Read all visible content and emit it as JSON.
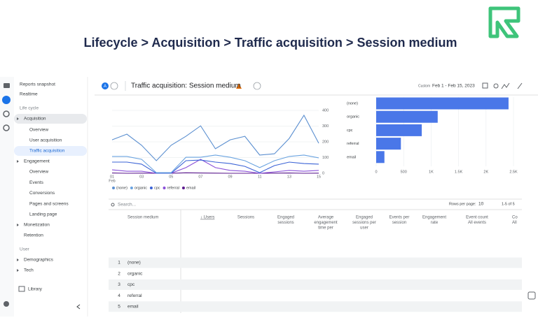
{
  "header": {
    "title": "Lifecycle > Acquisition > Traffic acquisition > Session medium"
  },
  "sidebar": {
    "top": [
      "Reports snapshot",
      "Realtime"
    ],
    "lifecycle_label": "Life cycle",
    "acquisition": {
      "label": "Acquisition",
      "items": [
        "Overview",
        "User acquisition",
        "Traffic acquisition"
      ]
    },
    "engagement": {
      "label": "Engagement",
      "items": [
        "Overview",
        "Events",
        "Conversions",
        "Pages and screens",
        "Landing page"
      ]
    },
    "more": [
      "Monetization",
      "Retention"
    ],
    "user_label": "User",
    "user_items": [
      "Demographics",
      "Tech"
    ],
    "library": "Library"
  },
  "topbar": {
    "avatar": "A",
    "report_title": "Traffic acquisition: Session medium",
    "range_label": "Custom",
    "range": "Feb 1 - Feb 15, 2023"
  },
  "chart_data": [
    {
      "type": "line",
      "categories": [
        "01",
        null,
        "03",
        null,
        "05",
        null,
        "07",
        null,
        "09",
        null,
        "11",
        null,
        "13",
        null,
        "15"
      ],
      "x_sublabel": "Feb",
      "ylim": [
        0,
        400
      ],
      "yticks": [
        0,
        100,
        200,
        300,
        400
      ],
      "y_axis_side": "right",
      "grid": true,
      "series": [
        {
          "name": "(none)",
          "color": "#5b8fd0",
          "values": [
            213,
            249,
            178,
            80,
            178,
            235,
            302,
            156,
            213,
            235,
            116,
            124,
            222,
            369,
            191
          ]
        },
        {
          "name": "organic",
          "color": "#6aa3e0",
          "values": [
            107,
            107,
            89,
            4,
            4,
            102,
            102,
            116,
            102,
            80,
            36,
            80,
            107,
            116,
            98
          ]
        },
        {
          "name": "cpc",
          "color": "#3b63d6",
          "values": [
            71,
            71,
            58,
            0,
            0,
            80,
            84,
            71,
            62,
            44,
            4,
            49,
            71,
            62,
            58
          ]
        },
        {
          "name": "referral",
          "color": "#8a4fd8",
          "values": [
            22,
            13,
            13,
            0,
            0,
            36,
            89,
            36,
            18,
            13,
            0,
            9,
            18,
            13,
            18
          ]
        },
        {
          "name": "email",
          "color": "#5c1a8e",
          "values": [
            2,
            0,
            1,
            0,
            0,
            3,
            2,
            1,
            0,
            0,
            0,
            1,
            2,
            0,
            1
          ]
        }
      ]
    },
    {
      "type": "bar",
      "orientation": "horizontal",
      "color": "#4a77e8",
      "categories": [
        "(none)",
        "organic",
        "cpc",
        "referral",
        "email"
      ],
      "values": [
        2410,
        1120,
        830,
        450,
        150
      ],
      "xlim": [
        0,
        2500
      ],
      "xticks": [
        0,
        500,
        {
          "value": 1000,
          "label": "1K"
        },
        {
          "value": 1500,
          "label": "1.5K"
        },
        {
          "value": 2000,
          "label": "2K"
        },
        {
          "value": 2500,
          "label": "2.5K"
        }
      ]
    }
  ],
  "table": {
    "search": "Search...",
    "rows_per_page_label": "Rows per page:",
    "rows_per_page": "10",
    "pagination": "1-5 of 5",
    "headers": [
      [
        "Session medium"
      ],
      [
        "↓ Users"
      ],
      [
        "Sessions"
      ],
      [
        "Engaged",
        "sessions"
      ],
      [
        "Average",
        "engagement",
        "time per"
      ],
      [
        "Engaged",
        "sessions per",
        "user"
      ],
      [
        "Events per",
        "session"
      ],
      [
        "Engagement",
        "rate"
      ],
      [
        "Event count",
        "All events"
      ],
      [
        "Co",
        "All"
      ]
    ],
    "rows": [
      [
        "1",
        "(none)"
      ],
      [
        "2",
        "organic"
      ],
      [
        "3",
        "cpc"
      ],
      [
        "4",
        "referral"
      ],
      [
        "5",
        "email"
      ]
    ]
  }
}
